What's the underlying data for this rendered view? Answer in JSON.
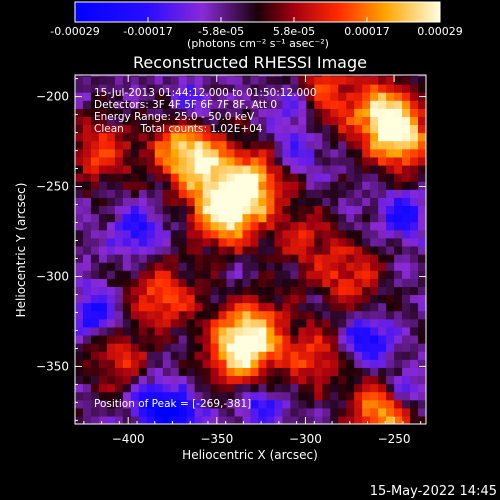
{
  "chart_data": {
    "type": "heatmap",
    "title": "Reconstructed RHESSI Image",
    "xlabel": "Heliocentric X (arcsec)",
    "ylabel": "Heliocentric Y (arcsec)",
    "xlim": [
      -430,
      -232
    ],
    "ylim": [
      -382,
      -188
    ],
    "xticks": [
      -400,
      -350,
      -300,
      -250
    ],
    "yticks": [
      -200,
      -250,
      -300,
      -350
    ],
    "colorbar": {
      "ticks": [
        "-0.00029",
        "-0.00017",
        "-5.8e-05",
        "5.8e-05",
        "0.00017",
        "0.00029"
      ],
      "units": "(photons cm⁻² s⁻¹ asec⁻²)",
      "range": [
        -0.00029,
        0.00029
      ]
    },
    "annotations": [
      "15-Jul-2013 01:44:12.000 to 01:50:12.000",
      "Detectors: 3F 4F 5F 6F 7F 8F, Att 0",
      "Energy Range: 25.0 - 50.0 keV",
      "Clean     Total counts: 1.02E+04"
    ],
    "peak_label": "Position of Peak = [-269,-381]",
    "hotspots": [
      {
        "x": -345,
        "y": -265,
        "intensity": 1.0
      },
      {
        "x": -330,
        "y": -248,
        "intensity": 0.85
      },
      {
        "x": -360,
        "y": -238,
        "intensity": 0.7
      },
      {
        "x": -370,
        "y": -225,
        "intensity": 0.6
      },
      {
        "x": -330,
        "y": -330,
        "intensity": 0.8
      },
      {
        "x": -338,
        "y": -345,
        "intensity": 0.75
      },
      {
        "x": -255,
        "y": -210,
        "intensity": 0.9
      },
      {
        "x": -245,
        "y": -225,
        "intensity": 0.7
      },
      {
        "x": -290,
        "y": -200,
        "intensity": 0.6
      },
      {
        "x": -255,
        "y": -375,
        "intensity": 0.95
      },
      {
        "x": -415,
        "y": -230,
        "intensity": 0.55
      },
      {
        "x": -380,
        "y": -310,
        "intensity": 0.6
      },
      {
        "x": -295,
        "y": -345,
        "intensity": 0.5
      },
      {
        "x": -405,
        "y": -345,
        "intensity": 0.45
      },
      {
        "x": -275,
        "y": -300,
        "intensity": 0.5
      },
      {
        "x": -300,
        "y": -280,
        "intensity": 0.4
      }
    ],
    "coldspots": [
      {
        "x": -418,
        "y": -320,
        "intensity": 0.7
      },
      {
        "x": -385,
        "y": -370,
        "intensity": 0.8
      },
      {
        "x": -370,
        "y": -378,
        "intensity": 0.7
      },
      {
        "x": -325,
        "y": -372,
        "intensity": 0.6
      },
      {
        "x": -265,
        "y": -335,
        "intensity": 0.8
      },
      {
        "x": -245,
        "y": -365,
        "intensity": 0.7
      },
      {
        "x": -395,
        "y": -275,
        "intensity": 0.6
      },
      {
        "x": -245,
        "y": -265,
        "intensity": 0.65
      },
      {
        "x": -365,
        "y": -205,
        "intensity": 0.5
      },
      {
        "x": -305,
        "y": -205,
        "intensity": 0.5
      },
      {
        "x": -305,
        "y": -230,
        "intensity": 0.45
      }
    ]
  },
  "footer": {
    "timestamp": "15-May-2022 14:45"
  }
}
